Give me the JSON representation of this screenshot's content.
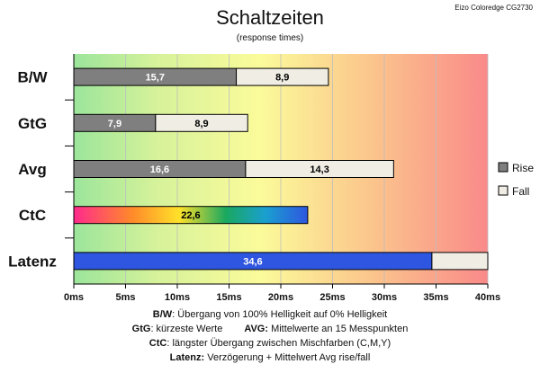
{
  "chart_data": {
    "type": "bar",
    "orientation": "horizontal",
    "stacked": true,
    "title": "Schaltzeiten",
    "subtitle": "(response times)",
    "corner_label": "Eizo Coloredge CG2730",
    "categories": [
      "B/W",
      "GtG",
      "Avg",
      "CtC",
      "Latenz"
    ],
    "series": [
      {
        "name": "Rise",
        "color": "#7f7f7f",
        "values": [
          15.7,
          7.9,
          16.6,
          22.6,
          34.6
        ],
        "labels": [
          "15,7",
          "7,9",
          "16,6",
          "22,6",
          "34,6"
        ]
      },
      {
        "name": "Fall",
        "color": "#f0ede4",
        "values": [
          8.9,
          8.9,
          14.3,
          0,
          5.4
        ],
        "labels": [
          "8,9",
          "8,9",
          "14,3",
          "",
          ""
        ]
      }
    ],
    "special_bar_colors": {
      "CtC": "rainbow-gradient",
      "Latenz": "#2f56e0"
    },
    "xlim": [
      0,
      40
    ],
    "x_ticks": [
      0,
      5,
      10,
      15,
      20,
      25,
      30,
      35,
      40
    ],
    "x_tick_labels": [
      "0ms",
      "5ms",
      "10ms",
      "15ms",
      "20ms",
      "25ms",
      "30ms",
      "35ms",
      "40ms"
    ],
    "background": "green-yellow-red gradient",
    "legend_position": "right"
  },
  "footnotes": {
    "bw_key": "B/W",
    "bw_text": ":  Übergang von 100% Helligkeit auf 0% Helligkeit",
    "gtg_key": "GtG",
    "gtg_text": ": kürzeste  Werte",
    "avg_key": "AVG:",
    "avg_text": " Mittelwerte  an 15 Messpunkten",
    "ctc_key": "CtC",
    "ctc_text": ": längster Übergang  zwischen Mischfarben (C,M,Y)",
    "latenz_key": "Latenz:",
    "latenz_text": " Verzögerung  + Mittelwert  Avg rise/fall"
  }
}
